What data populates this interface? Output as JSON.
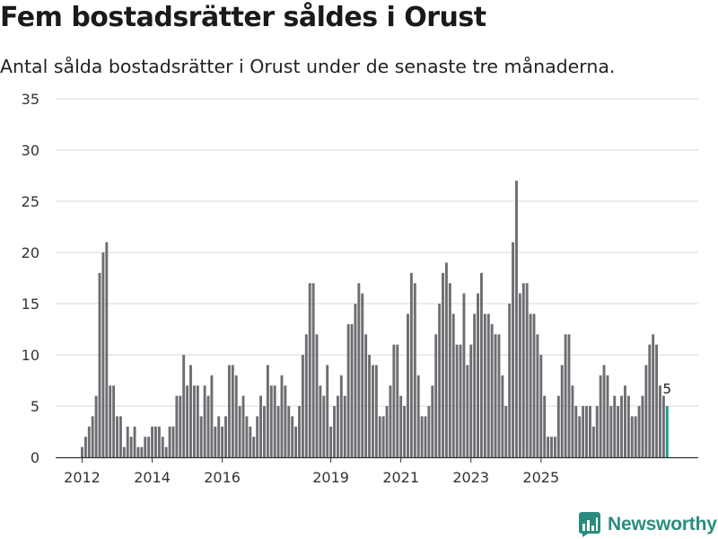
{
  "title": "Fem bostadsrätter såldes i Orust",
  "subtitle": "Antal sålda bostadsrätter i Orust under de senaste tre månaderna.",
  "brand": {
    "name": "Newsworthy",
    "icon": "newsworthy-logo-icon"
  },
  "colors": {
    "bar": "#6d6d72",
    "highlight": "#1e9a8d",
    "grid": "#d9d9d9",
    "axis": "#333333",
    "brand": "#2a8c7f"
  },
  "chart_data": {
    "type": "bar",
    "title": "Fem bostadsrätter såldes i Orust",
    "xlabel": "",
    "ylabel": "",
    "ylim": [
      0,
      35
    ],
    "yticks": [
      0,
      5,
      10,
      15,
      20,
      25,
      30,
      35
    ],
    "xticks": [
      {
        "label": "2012",
        "index": 0
      },
      {
        "label": "2014",
        "index": 20
      },
      {
        "label": "2016",
        "index": 40
      },
      {
        "label": "2019",
        "index": 71
      },
      {
        "label": "2021",
        "index": 91
      },
      {
        "label": "2023",
        "index": 111
      },
      {
        "label": "2025",
        "index": 131
      }
    ],
    "values": [
      1,
      2,
      3,
      4,
      6,
      18,
      20,
      21,
      7,
      7,
      4,
      4,
      1,
      3,
      2,
      3,
      1,
      1,
      2,
      2,
      3,
      3,
      3,
      2,
      1,
      3,
      3,
      6,
      6,
      10,
      7,
      9,
      7,
      7,
      4,
      7,
      6,
      8,
      3,
      4,
      3,
      4,
      9,
      9,
      8,
      5,
      6,
      4,
      3,
      2,
      4,
      6,
      5,
      9,
      7,
      7,
      5,
      8,
      7,
      5,
      4,
      3,
      5,
      10,
      12,
      17,
      17,
      12,
      7,
      6,
      9,
      3,
      5,
      6,
      8,
      6,
      13,
      13,
      15,
      17,
      16,
      12,
      10,
      9,
      9,
      4,
      4,
      5,
      7,
      11,
      11,
      6,
      5,
      14,
      18,
      17,
      8,
      4,
      4,
      5,
      7,
      12,
      15,
      18,
      19,
      17,
      14,
      11,
      11,
      16,
      9,
      11,
      14,
      16,
      18,
      14,
      14,
      13,
      12,
      12,
      8,
      5,
      15,
      21,
      27,
      16,
      17,
      17,
      14,
      14,
      12,
      10,
      6,
      2,
      2,
      2,
      6,
      9,
      12,
      12,
      7,
      5,
      4,
      5,
      5,
      5,
      3,
      5,
      8,
      9,
      8,
      5,
      6,
      5,
      6,
      7,
      6,
      4,
      4,
      5,
      6,
      9,
      11,
      12,
      11,
      7,
      6,
      5
    ],
    "highlight": {
      "index": 167,
      "label": "5"
    }
  }
}
